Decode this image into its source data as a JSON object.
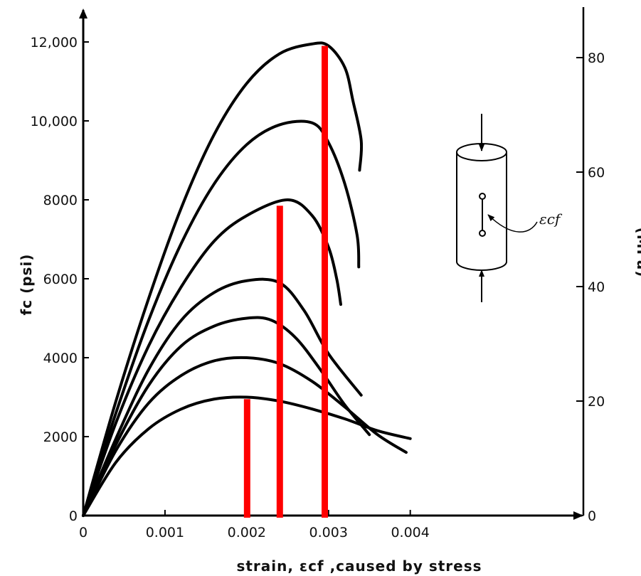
{
  "chart_data": {
    "type": "line",
    "title": "",
    "x": {
      "label": "strain, εcf ,caused by stress",
      "range": [
        0,
        0.0061
      ],
      "ticks": [
        0,
        0.001,
        0.002,
        0.003,
        0.004
      ],
      "tick_labels": [
        "0",
        "0.001",
        "0.002",
        "0.003",
        "0.004"
      ]
    },
    "y_left": {
      "label": "fc (psi)",
      "range": [
        0,
        12000
      ],
      "ticks": [
        0,
        2000,
        4000,
        6000,
        8000,
        10000,
        12000
      ],
      "tick_labels": [
        "0",
        "2000",
        "4000",
        "6000",
        "8000",
        "10,000",
        "12,000"
      ]
    },
    "y_right": {
      "label": "(MPa)",
      "ticks": [
        0,
        20,
        40,
        60,
        80
      ],
      "tick_labels": [
        "0",
        "20",
        "40",
        "60",
        "80"
      ]
    },
    "grid": false,
    "series": [
      {
        "points": [
          [
            0,
            0
          ],
          [
            0.0004,
            1350
          ],
          [
            0.0008,
            2200
          ],
          [
            0.0012,
            2700
          ],
          [
            0.0016,
            2950
          ],
          [
            0.002,
            3000
          ],
          [
            0.0024,
            2900
          ],
          [
            0.0028,
            2700
          ],
          [
            0.0032,
            2450
          ],
          [
            0.0036,
            2150
          ],
          [
            0.004,
            1950
          ]
        ]
      },
      {
        "points": [
          [
            0,
            0
          ],
          [
            0.0004,
            1650
          ],
          [
            0.0008,
            2850
          ],
          [
            0.0012,
            3550
          ],
          [
            0.0016,
            3920
          ],
          [
            0.002,
            4000
          ],
          [
            0.0024,
            3850
          ],
          [
            0.0028,
            3400
          ],
          [
            0.0032,
            2750
          ],
          [
            0.0036,
            2050
          ],
          [
            0.00395,
            1600
          ]
        ]
      },
      {
        "points": [
          [
            0,
            0
          ],
          [
            0.0004,
            1800
          ],
          [
            0.0008,
            3300
          ],
          [
            0.0012,
            4300
          ],
          [
            0.0016,
            4800
          ],
          [
            0.002,
            5000
          ],
          [
            0.0023,
            4950
          ],
          [
            0.0026,
            4500
          ],
          [
            0.0029,
            3700
          ],
          [
            0.0032,
            2800
          ],
          [
            0.0035,
            2050
          ]
        ]
      },
      {
        "points": [
          [
            0,
            0
          ],
          [
            0.0004,
            1950
          ],
          [
            0.0008,
            3700
          ],
          [
            0.0012,
            4950
          ],
          [
            0.0016,
            5650
          ],
          [
            0.002,
            5950
          ],
          [
            0.0024,
            5900
          ],
          [
            0.0027,
            5200
          ],
          [
            0.003,
            4100
          ],
          [
            0.0034,
            3050
          ]
        ]
      },
      {
        "points": [
          [
            0,
            0
          ],
          [
            0.0004,
            2350
          ],
          [
            0.0008,
            4300
          ],
          [
            0.0012,
            5800
          ],
          [
            0.0016,
            6950
          ],
          [
            0.002,
            7600
          ],
          [
            0.0025,
            8000
          ],
          [
            0.0028,
            7600
          ],
          [
            0.003,
            6800
          ],
          [
            0.0031,
            6000
          ],
          [
            0.00315,
            5350
          ]
        ]
      },
      {
        "points": [
          [
            0,
            0
          ],
          [
            0.0004,
            2600
          ],
          [
            0.0008,
            4950
          ],
          [
            0.0012,
            6900
          ],
          [
            0.0016,
            8400
          ],
          [
            0.002,
            9400
          ],
          [
            0.0024,
            9900
          ],
          [
            0.0028,
            9950
          ],
          [
            0.003,
            9450
          ],
          [
            0.0032,
            8400
          ],
          [
            0.00335,
            7100
          ],
          [
            0.00337,
            6300
          ]
        ]
      },
      {
        "points": [
          [
            0,
            0
          ],
          [
            0.0004,
            2900
          ],
          [
            0.0008,
            5500
          ],
          [
            0.0012,
            7800
          ],
          [
            0.0016,
            9650
          ],
          [
            0.002,
            10950
          ],
          [
            0.0024,
            11700
          ],
          [
            0.0028,
            11950
          ],
          [
            0.003,
            11900
          ],
          [
            0.0032,
            11350
          ],
          [
            0.0033,
            10500
          ],
          [
            0.0034,
            9500
          ],
          [
            0.00338,
            8750
          ]
        ]
      }
    ],
    "markers": [
      {
        "x": 0.002,
        "y": 2950,
        "color": "#ff0000"
      },
      {
        "x": 0.0024,
        "y": 7850,
        "color": "#ff0000"
      },
      {
        "x": 0.00295,
        "y": 11900,
        "color": "#ff0000"
      }
    ],
    "inset": {
      "strain_label": "εcf"
    }
  }
}
